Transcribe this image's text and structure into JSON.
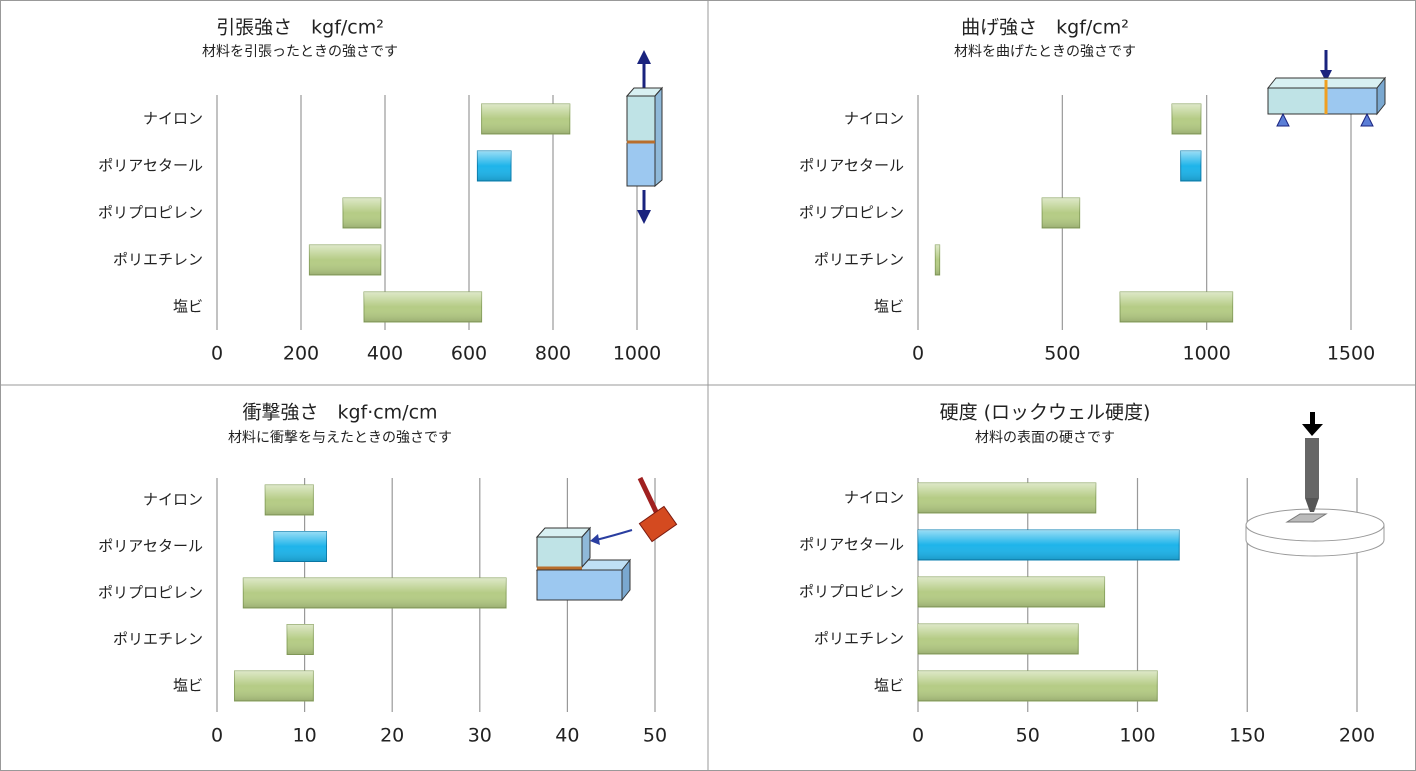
{
  "chart_data": [
    {
      "type": "range_bar",
      "title": "引張強さ　kgf/cm²",
      "subtitle": "材料を引張ったときの強さです",
      "categories": [
        "ナイロン",
        "ポリアセタール",
        "ポリプロピレン",
        "ポリエチレン",
        "塩ビ"
      ],
      "low": [
        630,
        620,
        300,
        220,
        350
      ],
      "high": [
        840,
        700,
        390,
        390,
        630
      ],
      "colors": [
        "#b5cc85",
        "#1eb4ea",
        "#b5cc85",
        "#b5cc85",
        "#b5cc85"
      ],
      "xlim": [
        0,
        1000
      ],
      "xticks": [
        0,
        200,
        400,
        600,
        800,
        1000
      ],
      "grid": true
    },
    {
      "type": "range_bar",
      "title": "曲げ強さ　kgf/cm²",
      "subtitle": "材料を曲げたときの強さです",
      "categories": [
        "ナイロン",
        "ポリアセタール",
        "ポリプロピレン",
        "ポリエチレン",
        "塩ビ"
      ],
      "low": [
        880,
        910,
        430,
        60,
        700
      ],
      "high": [
        980,
        980,
        560,
        75,
        1090
      ],
      "colors": [
        "#b5cc85",
        "#1eb4ea",
        "#b5cc85",
        "#b5cc85",
        "#b5cc85"
      ],
      "xlim": [
        0,
        1500
      ],
      "xticks": [
        0,
        500,
        1000,
        1500
      ],
      "grid": true
    },
    {
      "type": "range_bar",
      "title": "衝撃強さ　kgf·cm/cm",
      "subtitle": "材料に衝撃を与えたときの強さです",
      "categories": [
        "ナイロン",
        "ポリアセタール",
        "ポリプロピレン",
        "ポリエチレン",
        "塩ビ"
      ],
      "low": [
        5.5,
        6.5,
        3,
        8,
        2
      ],
      "high": [
        11,
        12.5,
        33,
        11,
        11
      ],
      "colors": [
        "#b5cc85",
        "#1eb4ea",
        "#b5cc85",
        "#b5cc85",
        "#b5cc85"
      ],
      "xlim": [
        0,
        50
      ],
      "xticks": [
        0,
        10,
        20,
        30,
        40,
        50
      ],
      "grid": true
    },
    {
      "type": "bar",
      "title": "硬度 (ロックウェル硬度)",
      "subtitle": "材料の表面の硬さです",
      "categories": [
        "ナイロン",
        "ポリアセタール",
        "ポリプロピレン",
        "ポリエチレン",
        "塩ビ"
      ],
      "values": [
        81,
        119,
        85,
        73,
        109
      ],
      "colors": [
        "#b5cc85",
        "#1eb4ea",
        "#b5cc85",
        "#b5cc85",
        "#b5cc85"
      ],
      "xlim": [
        0,
        200
      ],
      "xticks": [
        0,
        50,
        100,
        150,
        200
      ],
      "grid": true
    }
  ]
}
